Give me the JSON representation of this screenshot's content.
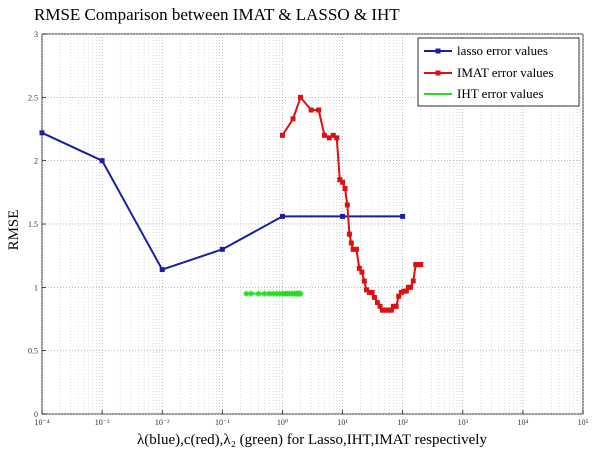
{
  "chart_data": {
    "type": "line",
    "title": "RMSE Comparison between IMAT & LASSO & IHT",
    "xlabel": "λ(blue),c(red),λ₂ (green) for Lasso,IHT,IMAT respectively",
    "ylabel": "RMSE",
    "xscale": "log",
    "xlim": [
      0.0001,
      100000
    ],
    "ylim": [
      0,
      3
    ],
    "x_ticks": [
      0.0001,
      0.001,
      0.01,
      0.1,
      1,
      10,
      100,
      1000,
      10000,
      100000
    ],
    "x_tick_labels": [
      "10⁻⁴",
      "10⁻³",
      "10⁻²",
      "10⁻¹",
      "10⁰",
      "10¹",
      "10²",
      "10³",
      "10⁴",
      "10⁵"
    ],
    "y_ticks": [
      0,
      0.5,
      1,
      1.5,
      2,
      2.5,
      3
    ],
    "y_tick_labels": [
      "0",
      "0.5",
      "1",
      "1.5",
      "2",
      "2.5",
      "3"
    ],
    "grid": true,
    "legend_position": "top-right",
    "series": [
      {
        "name": "lasso error values",
        "color": "#1f1f9e",
        "marker": "square",
        "x": [
          0.0001,
          0.001,
          0.01,
          0.1,
          1,
          10,
          100
        ],
        "y": [
          2.22,
          2.0,
          1.14,
          1.3,
          1.56,
          1.56,
          1.56
        ]
      },
      {
        "name": "IMAT error values",
        "color": "#dd1111",
        "marker": "square",
        "x": [
          1,
          1.5,
          2,
          3,
          4,
          5,
          6,
          7,
          8,
          9,
          10,
          11,
          12,
          13,
          14,
          15,
          17,
          19,
          21,
          23,
          25,
          28,
          31,
          34,
          38,
          42,
          46,
          50,
          55,
          60,
          65,
          70,
          78,
          86,
          95,
          105,
          115,
          125,
          135,
          150,
          165,
          180,
          200
        ],
        "y": [
          2.2,
          2.33,
          2.5,
          2.4,
          2.4,
          2.2,
          2.18,
          2.2,
          2.18,
          1.85,
          1.83,
          1.78,
          1.65,
          1.42,
          1.35,
          1.3,
          1.3,
          1.15,
          1.12,
          1.05,
          0.98,
          0.96,
          0.96,
          0.92,
          0.88,
          0.85,
          0.82,
          0.82,
          0.82,
          0.82,
          0.82,
          0.85,
          0.85,
          0.93,
          0.96,
          0.97,
          0.97,
          1.0,
          1.0,
          1.05,
          1.18,
          1.18,
          1.18
        ]
      },
      {
        "name": "IHT error values",
        "color": "#22dd22",
        "marker": "star",
        "x": [
          0.25,
          0.3,
          0.4,
          0.5,
          0.6,
          0.7,
          0.8,
          0.9,
          1,
          1.1,
          1.2,
          1.3,
          1.4,
          1.5,
          1.6,
          1.7,
          1.8,
          1.9,
          2
        ],
        "y": [
          0.95,
          0.95,
          0.95,
          0.95,
          0.95,
          0.95,
          0.95,
          0.95,
          0.95,
          0.95,
          0.95,
          0.95,
          0.95,
          0.95,
          0.95,
          0.95,
          0.95,
          0.95,
          0.95
        ]
      }
    ]
  }
}
